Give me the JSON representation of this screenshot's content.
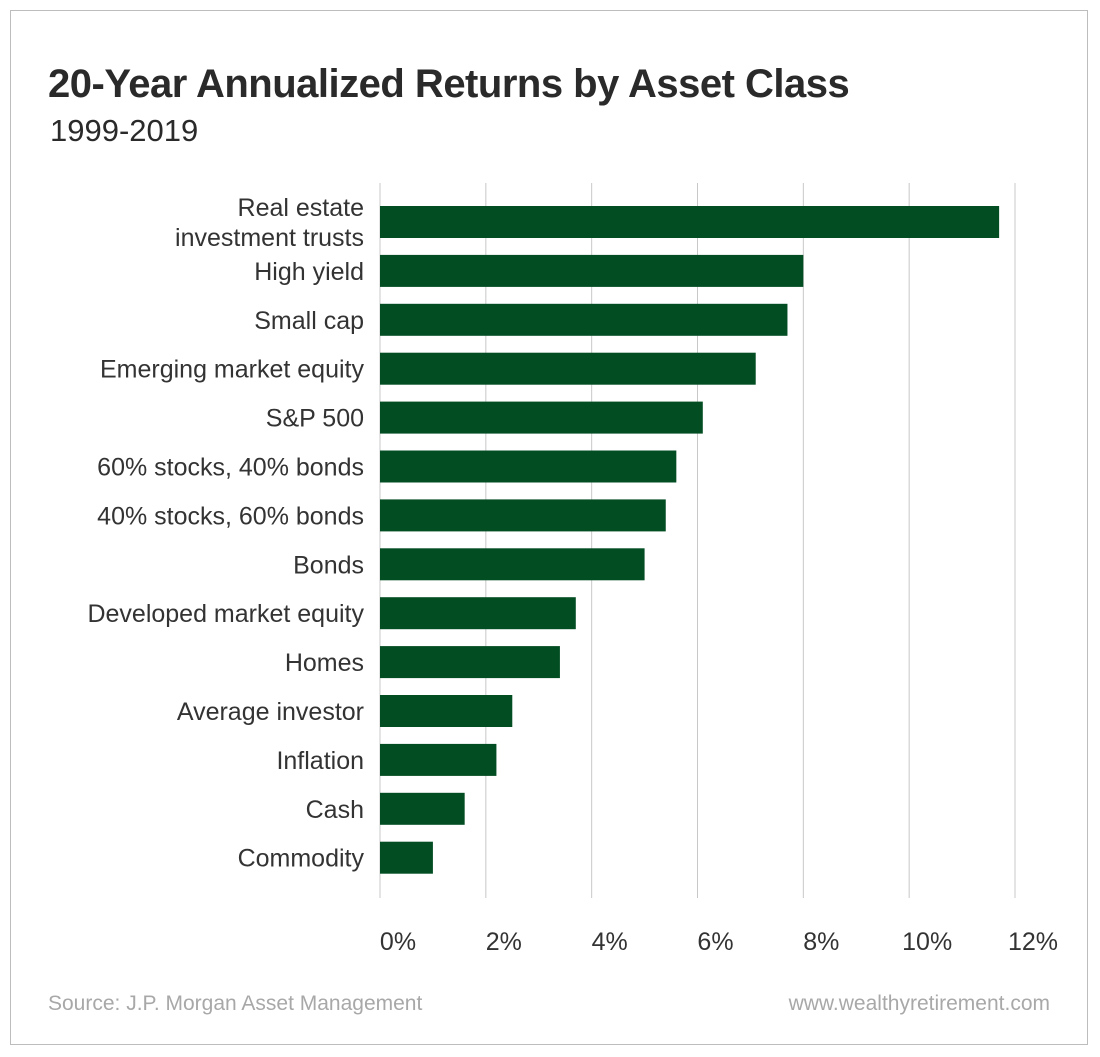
{
  "chart_data": {
    "type": "bar",
    "orientation": "horizontal",
    "title": "20-Year Annualized Returns by Asset Class",
    "subtitle": "1999-2019",
    "categories": [
      "Real estate investment trusts",
      "High yield",
      "Small cap",
      "Emerging market equity",
      "S&P 500",
      "60% stocks, 40% bonds",
      "40% stocks, 60% bonds",
      "Bonds",
      "Developed market equity",
      "Homes",
      "Average investor",
      "Inflation",
      "Cash",
      "Commodity"
    ],
    "category_lines": [
      [
        "Real estate",
        "investment trusts"
      ],
      [
        "High yield"
      ],
      [
        "Small cap"
      ],
      [
        "Emerging market equity"
      ],
      [
        "S&P 500"
      ],
      [
        "60% stocks, 40% bonds"
      ],
      [
        "40% stocks, 60% bonds"
      ],
      [
        "Bonds"
      ],
      [
        "Developed market equity"
      ],
      [
        "Homes"
      ],
      [
        "Average investor"
      ],
      [
        "Inflation"
      ],
      [
        "Cash"
      ],
      [
        "Commodity"
      ]
    ],
    "values": [
      11.7,
      8.0,
      7.7,
      7.1,
      6.1,
      5.6,
      5.4,
      5.0,
      3.7,
      3.4,
      2.5,
      2.2,
      1.6,
      1.0
    ],
    "xlim": [
      0,
      12
    ],
    "xticks": [
      0,
      2,
      4,
      6,
      8,
      10,
      12
    ],
    "xtick_labels": [
      "0%",
      "2%",
      "4%",
      "6%",
      "8%",
      "10%",
      "12%"
    ],
    "grid": "vertical",
    "bar_color": "#034d23",
    "grid_color": "#c8c8c8"
  },
  "footer": {
    "source": "Source: J.P. Morgan Asset Management",
    "website": "www.wealthyretirement.com"
  }
}
